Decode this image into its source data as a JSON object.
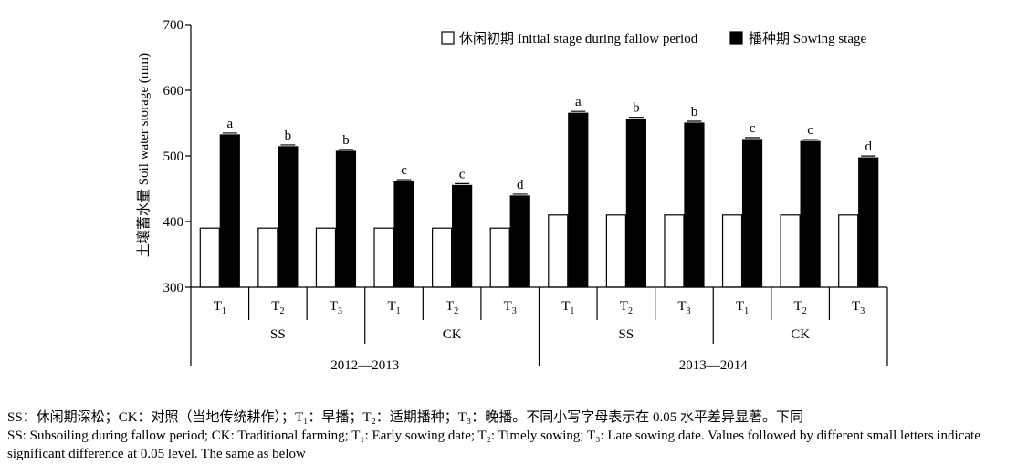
{
  "chart_data": {
    "type": "bar",
    "ylabel": "土壤蓄水量 Soil water storage (mm)",
    "ylim": [
      300,
      700
    ],
    "yticks": [
      300,
      400,
      500,
      600,
      700
    ],
    "legend_position": "top-right",
    "series": [
      {
        "name": "休闲初期 Initial stage during fallow period",
        "color": "#ffffff",
        "values": [
          390,
          390,
          390,
          390,
          390,
          390,
          410,
          410,
          410,
          410,
          410,
          410
        ]
      },
      {
        "name": "播种期 Sowing stage",
        "color": "#000000",
        "values": [
          532,
          514,
          507,
          461,
          455,
          439,
          565,
          556,
          550,
          525,
          522,
          497
        ]
      }
    ],
    "sig_letters": [
      "a",
      "b",
      "b",
      "c",
      "c",
      "d",
      "a",
      "b",
      "b",
      "c",
      "c",
      "d"
    ],
    "categories": [
      {
        "main": "T",
        "sub": "1"
      },
      {
        "main": "T",
        "sub": "2"
      },
      {
        "main": "T",
        "sub": "3"
      },
      {
        "main": "T",
        "sub": "1"
      },
      {
        "main": "T",
        "sub": "2"
      },
      {
        "main": "T",
        "sub": "3"
      },
      {
        "main": "T",
        "sub": "1"
      },
      {
        "main": "T",
        "sub": "2"
      },
      {
        "main": "T",
        "sub": "3"
      },
      {
        "main": "T",
        "sub": "1"
      },
      {
        "main": "T",
        "sub": "2"
      },
      {
        "main": "T",
        "sub": "3"
      }
    ],
    "treatment_groups": [
      "SS",
      "CK",
      "SS",
      "CK"
    ],
    "year_groups": [
      "2012—2013",
      "2013—2014"
    ]
  },
  "notes": {
    "line1": "SS：休闲期深松；CK：对照（当地传统耕作）；T₁：早播；T₂：适期播种；T₃：晚播。不同小写字母表示在 0.05 水平差异显著。下同",
    "line2": "SS: Subsoiling during fallow period; CK: Traditional farming; T₁: Early sowing date; T₂: Timely sowing; T₃: Late sowing date. Values followed by different small letters indicate significant difference at 0.05 level. The same as below"
  }
}
